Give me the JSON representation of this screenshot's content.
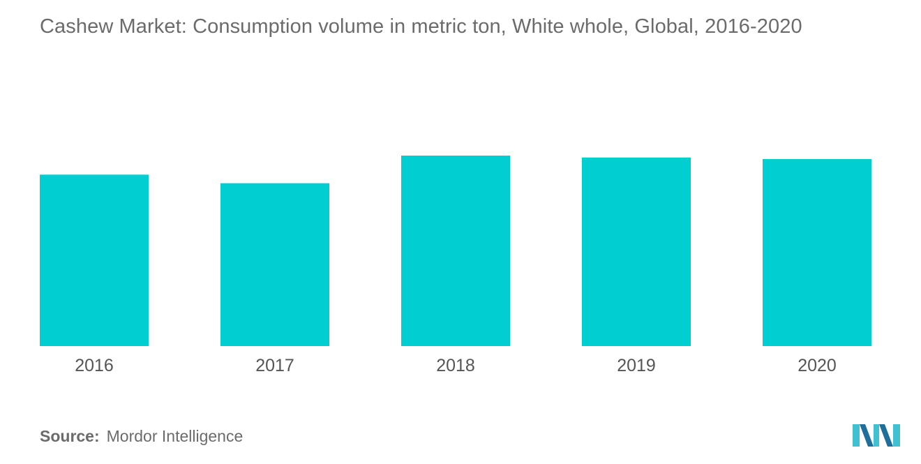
{
  "chart_data": {
    "type": "bar",
    "title": "Cashew Market: Consumption volume in metric ton, White whole, Global, 2016-2020",
    "categories": [
      "2016",
      "2017",
      "2018",
      "2019",
      "2020"
    ],
    "values": [
      90,
      85.5,
      100,
      99,
      98.2
    ],
    "ylim": [
      0,
      100
    ],
    "grid": false,
    "legend": "none",
    "bar_color": "#00ced1"
  },
  "source": {
    "label": "Source:",
    "text": "Mordor Intelligence"
  },
  "logo": {
    "icon": "mordor-intelligence-logo-icon",
    "colors": [
      "#1e6f9b",
      "#3fc1d1"
    ]
  }
}
